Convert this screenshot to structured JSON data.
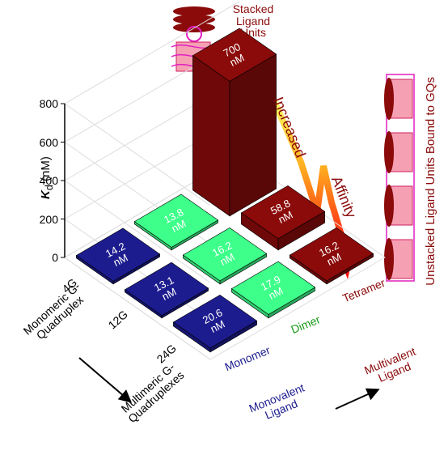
{
  "chart_data": {
    "type": "bar3d",
    "categories": [
      "4G",
      "12G",
      "24G"
    ],
    "series": [
      {
        "name": "Monomer",
        "color": "#1c1c8f",
        "values": [
          14.2,
          13.1,
          20.6
        ],
        "value_labels": [
          "14.2 nM",
          "13.1 nM",
          "20.6 nM"
        ]
      },
      {
        "name": "Dimer",
        "color": "#3dff8a",
        "values": [
          13.8,
          16.2,
          17.9
        ],
        "value_labels": [
          "13.8 nM",
          "16.2 nM",
          "17.9 nM"
        ]
      },
      {
        "name": "Tetramer",
        "color": "#8b0a0a",
        "values": [
          700,
          58.8,
          16.2
        ],
        "value_labels": [
          "700 nM",
          "58.8 nM",
          "16.2 nM"
        ]
      }
    ],
    "zlim": [
      0,
      800
    ],
    "zticks": [
      0,
      200,
      400,
      600,
      800
    ],
    "zlabel": {
      "symbol": "K",
      "subscript": "d",
      "unit": "(nM)"
    },
    "grid": true
  },
  "annotations": {
    "stacked_label": "Stacked Ligand Units",
    "increased": "Increased",
    "affinity": "Affinity",
    "unstacked_label": "Unstacked Ligand Units Bound to GQs",
    "row_axis_label": "Monomeric G-Quadruplex",
    "row_axis_end_label": "Multimeric G-Quadruplexes",
    "column_axis_label": "Monovalent Ligand",
    "column_axis_end_label": "Multivalent Ligand"
  }
}
